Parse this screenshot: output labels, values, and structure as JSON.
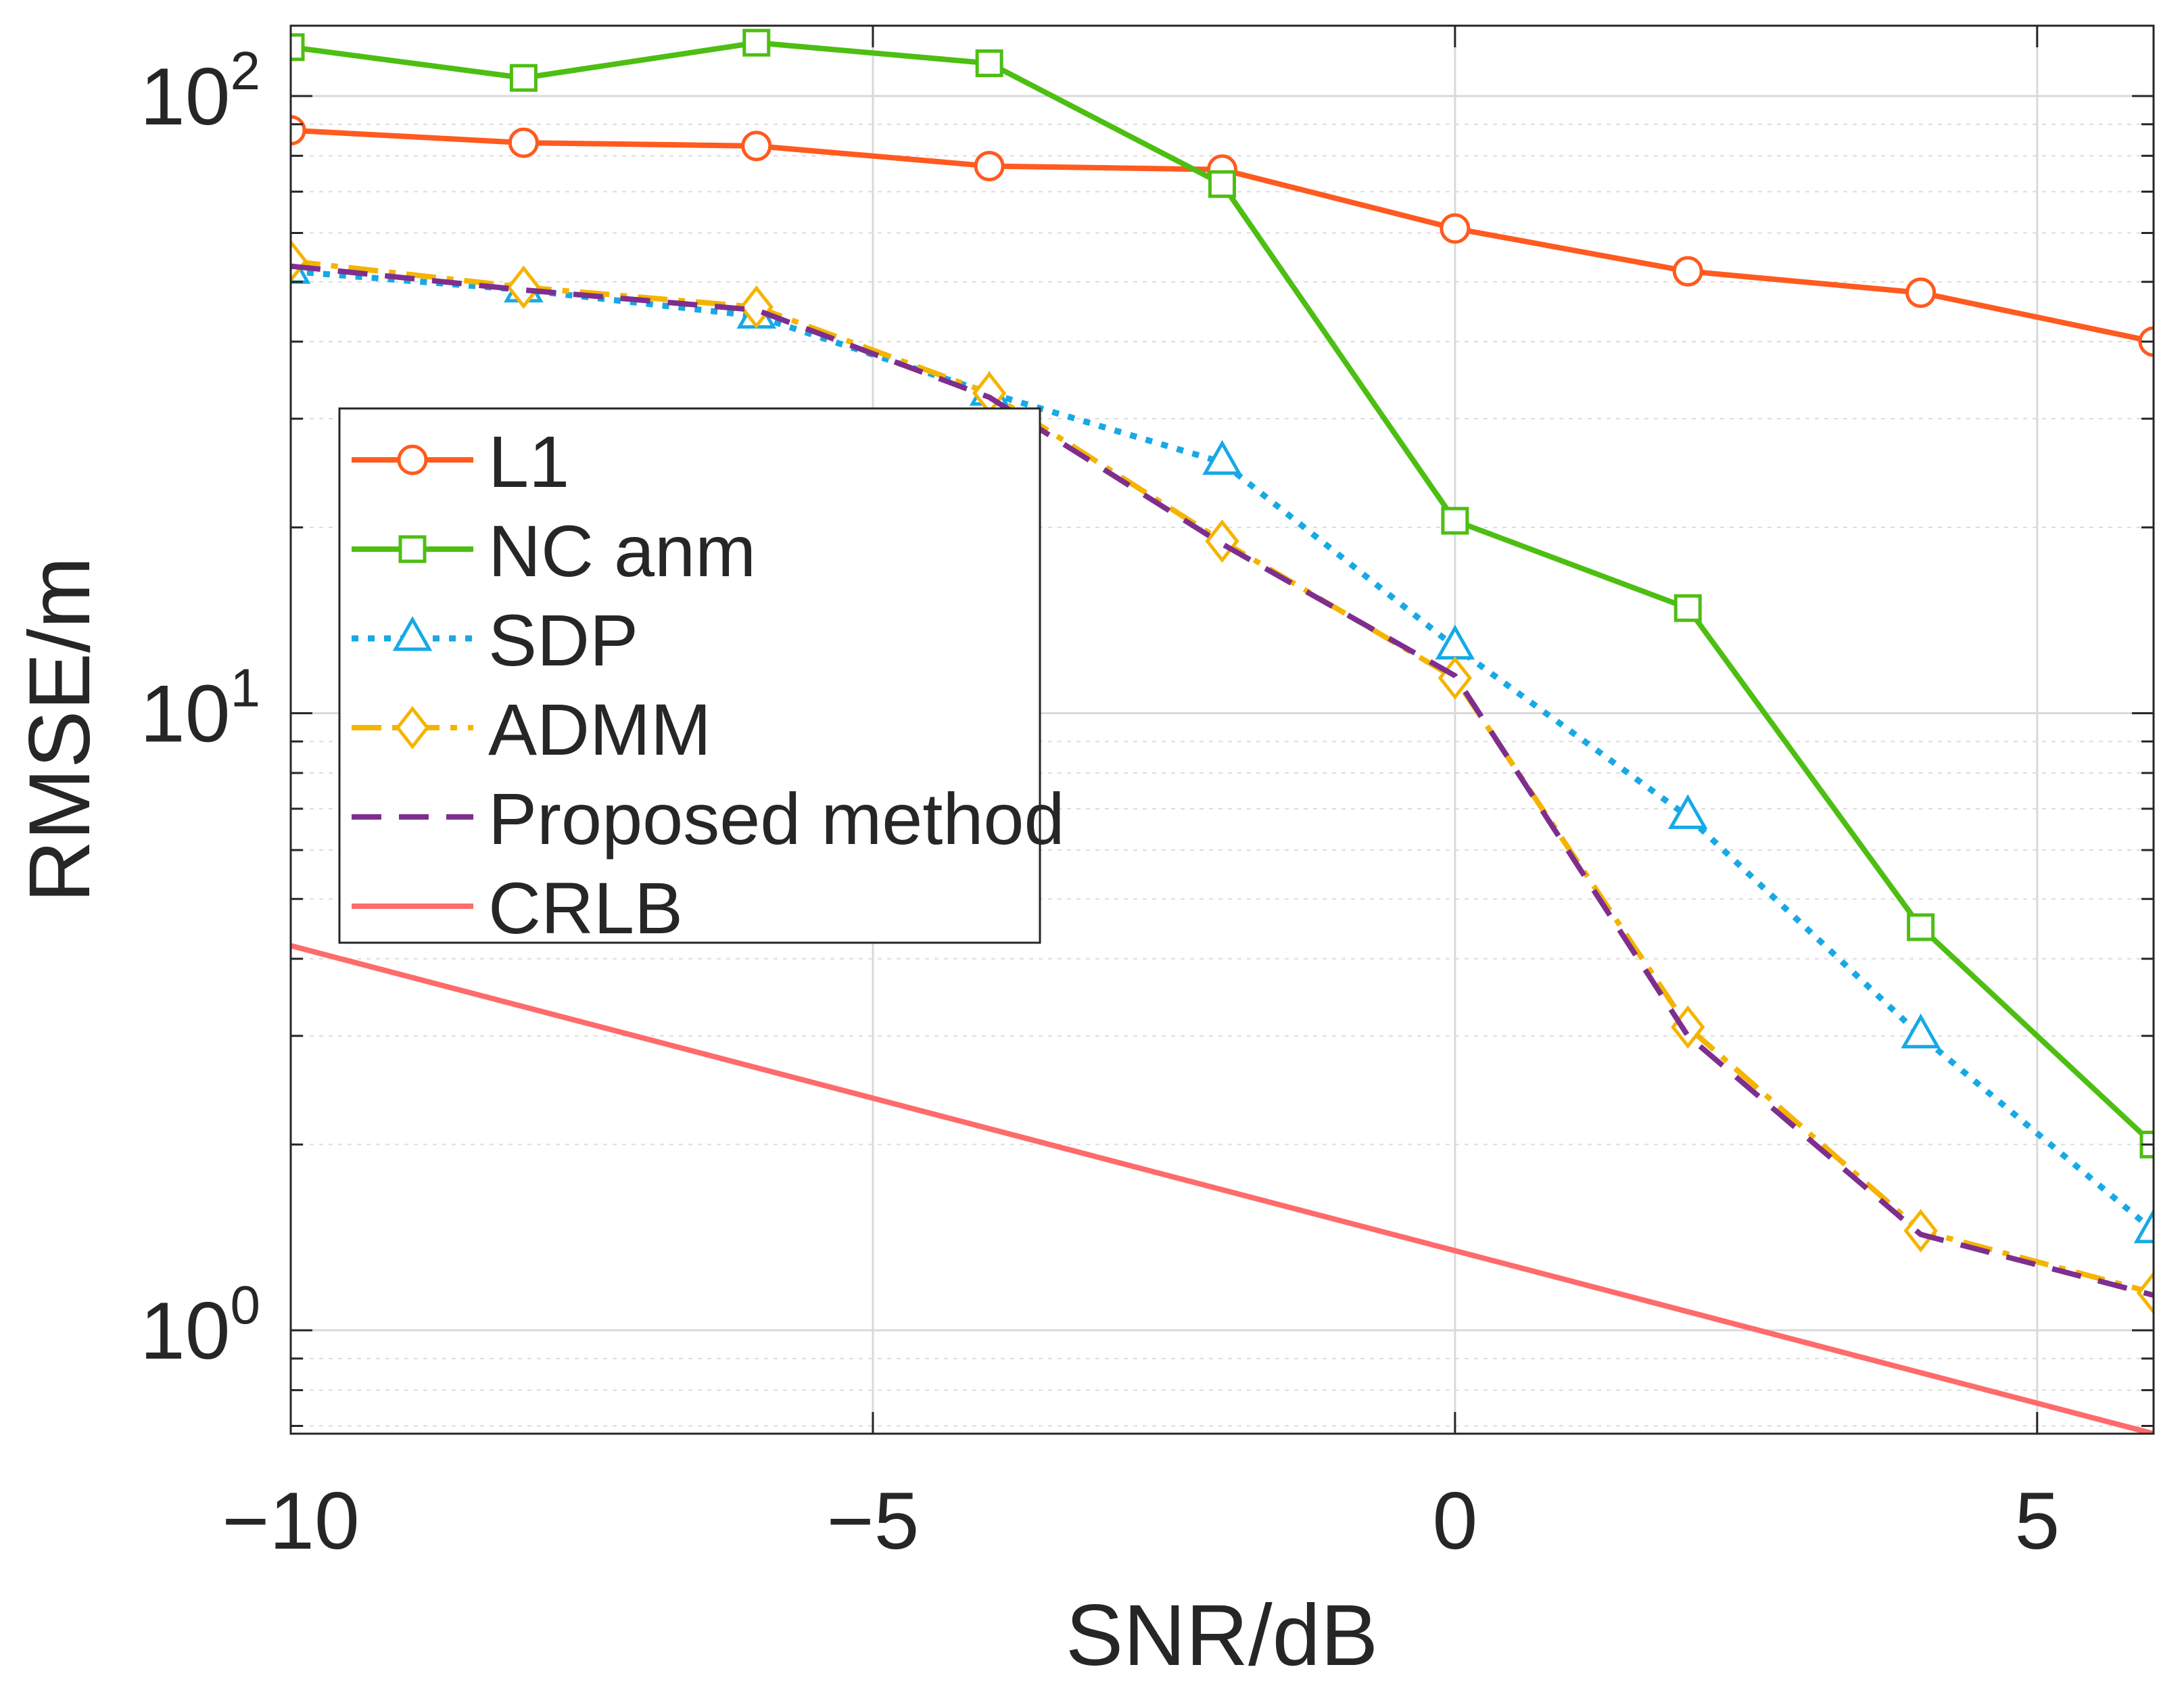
{
  "chart_data": {
    "type": "line",
    "title": "",
    "xlabel": "SNR/dB",
    "ylabel": "RMSE/m",
    "yscale": "log",
    "xlim": [
      -10,
      6
    ],
    "ylim": [
      0.68,
      130
    ],
    "grid": true,
    "legend_position": "upper-left",
    "x": [
      -10,
      -8,
      -6,
      -4,
      -2,
      0,
      2,
      4,
      6
    ],
    "xticks": [
      {
        "value": -10,
        "label": "−10"
      },
      {
        "value": -5,
        "label": "−5"
      },
      {
        "value": 0,
        "label": "0"
      },
      {
        "value": 5,
        "label": "5"
      }
    ],
    "yticks": [
      {
        "value": 1,
        "base": "10",
        "exp": "0"
      },
      {
        "value": 10,
        "base": "10",
        "exp": "1"
      },
      {
        "value": 100,
        "base": "10",
        "exp": "2"
      }
    ],
    "series": [
      {
        "name": "L1",
        "color": "#ff5a1f",
        "dash": "",
        "marker": "circle",
        "values": [
          88,
          84,
          83,
          77,
          76,
          61,
          52,
          48,
          40
        ]
      },
      {
        "name": "NC anm",
        "color": "#4dbe12",
        "dash": "",
        "marker": "square",
        "values": [
          120,
          107,
          122,
          113,
          72,
          20.5,
          14.8,
          4.5,
          2.0
        ]
      },
      {
        "name": "SDP",
        "color": "#16a9e6",
        "dash": "dot",
        "marker": "triangle",
        "values": [
          52,
          48.5,
          44,
          33,
          25.5,
          12.8,
          6.8,
          3.0,
          1.45
        ]
      },
      {
        "name": "ADMM",
        "color": "#f5b400",
        "dash": "dashdot",
        "marker": "diamond",
        "values": [
          54,
          49,
          45.5,
          33,
          19,
          11.4,
          3.1,
          1.45,
          1.15
        ]
      },
      {
        "name": "Proposed method",
        "color": "#7e2f8e",
        "dash": "dash",
        "marker": "none",
        "values": [
          53,
          48.5,
          45,
          32.5,
          18.8,
          11.5,
          3.0,
          1.43,
          1.14
        ]
      },
      {
        "name": "CRLB",
        "color": "#ff6b6b",
        "dash": "",
        "marker": "none",
        "x": [
          -10,
          6
        ],
        "values": [
          4.2,
          0.68
        ]
      }
    ]
  }
}
